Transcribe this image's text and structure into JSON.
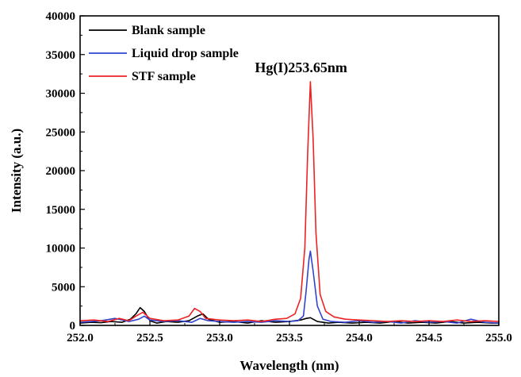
{
  "chart_data": {
    "type": "line",
    "title": "",
    "xlabel": "Wavelength (nm)",
    "ylabel": "Intensity (a.u.)",
    "xlim": [
      252.0,
      255.0
    ],
    "ylim": [
      0,
      40000
    ],
    "xticks": [
      252.0,
      252.5,
      253.0,
      253.5,
      254.0,
      254.5,
      255.0
    ],
    "xtick_labels": [
      "252.0",
      "252.5",
      "253.0",
      "253.5",
      "254.0",
      "254.5",
      "255.0"
    ],
    "yticks": [
      0,
      5000,
      10000,
      15000,
      20000,
      25000,
      30000,
      35000,
      40000
    ],
    "ytick_labels": [
      "0",
      "5000",
      "10000",
      "15000",
      "20000",
      "25000",
      "30000",
      "35000",
      "40000"
    ],
    "grid": false,
    "legend_position": "top-left",
    "annotation": {
      "text": "Hg(I)253.65nm",
      "x": 253.65,
      "y": 31500
    },
    "series": [
      {
        "name": "Blank sample",
        "color": "#000000",
        "x": [
          252.0,
          252.08,
          252.15,
          252.22,
          252.3,
          252.36,
          252.4,
          252.43,
          252.46,
          252.5,
          252.55,
          252.62,
          252.7,
          252.78,
          252.84,
          252.88,
          252.92,
          253.0,
          253.1,
          253.2,
          253.3,
          253.4,
          253.5,
          253.58,
          253.62,
          253.65,
          253.7,
          253.78,
          253.85,
          253.95,
          254.05,
          254.15,
          254.25,
          254.35,
          254.45,
          254.55,
          254.65,
          254.75,
          254.85,
          254.95,
          255.0
        ],
        "y": [
          300,
          400,
          350,
          500,
          400,
          800,
          1500,
          2300,
          1800,
          600,
          300,
          500,
          400,
          600,
          1200,
          1500,
          800,
          400,
          500,
          300,
          600,
          400,
          500,
          700,
          900,
          1000,
          500,
          300,
          400,
          300,
          400,
          300,
          500,
          300,
          400,
          300,
          500,
          300,
          400,
          300,
          300
        ]
      },
      {
        "name": "Liquid drop sample",
        "color": "#3344cc",
        "x": [
          252.0,
          252.08,
          252.15,
          252.25,
          252.35,
          252.42,
          252.46,
          252.5,
          252.6,
          252.7,
          252.8,
          252.86,
          252.92,
          253.0,
          253.1,
          253.2,
          253.3,
          253.4,
          253.5,
          253.56,
          253.6,
          253.62,
          253.64,
          253.65,
          253.67,
          253.7,
          253.74,
          253.8,
          253.9,
          254.0,
          254.1,
          254.2,
          254.3,
          254.4,
          254.5,
          254.6,
          254.7,
          254.8,
          254.9,
          255.0
        ],
        "y": [
          400,
          500,
          600,
          900,
          500,
          800,
          1200,
          700,
          500,
          600,
          400,
          900,
          600,
          500,
          400,
          500,
          400,
          600,
          500,
          600,
          1200,
          4500,
          8500,
          9600,
          7000,
          2500,
          800,
          500,
          400,
          600,
          400,
          500,
          300,
          600,
          400,
          500,
          300,
          800,
          400,
          300
        ]
      },
      {
        "name": "STF sample",
        "color": "#ee2222",
        "x": [
          252.0,
          252.1,
          252.2,
          252.28,
          252.35,
          252.4,
          252.45,
          252.5,
          252.6,
          252.7,
          252.78,
          252.82,
          252.86,
          252.9,
          253.0,
          253.1,
          253.2,
          253.3,
          253.4,
          253.48,
          253.54,
          253.58,
          253.61,
          253.63,
          253.65,
          253.67,
          253.69,
          253.72,
          253.76,
          253.82,
          253.9,
          254.0,
          254.1,
          254.2,
          254.3,
          254.4,
          254.5,
          254.6,
          254.7,
          254.8,
          254.9,
          255.0
        ],
        "y": [
          600,
          700,
          500,
          900,
          600,
          1200,
          1700,
          900,
          600,
          700,
          1200,
          2200,
          1800,
          900,
          700,
          600,
          700,
          500,
          800,
          900,
          1500,
          3500,
          10000,
          22000,
          31500,
          24000,
          12000,
          4000,
          1800,
          1100,
          800,
          700,
          600,
          500,
          600,
          500,
          600,
          500,
          700,
          500,
          600,
          500
        ]
      }
    ]
  }
}
